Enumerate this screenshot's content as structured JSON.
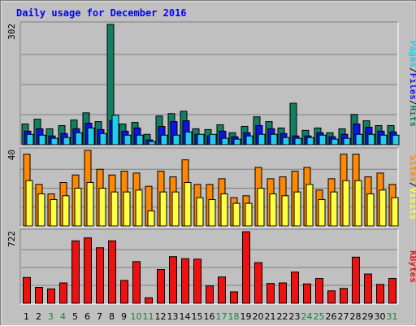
{
  "title": "Daily usage for December 2016",
  "colors": {
    "hits": "#127e62",
    "files": "#1111ee",
    "pages": "#22ccee",
    "visits": "#ffff44",
    "sites": "#ff8800",
    "kbytes": "#ee1111",
    "day_normal": "#000000",
    "day_weekend": "#1b8040"
  },
  "chart_data": [
    {
      "type": "bar",
      "panel": "hits-files-pages",
      "ymax_label": "302",
      "legend": [
        {
          "label": "Pages",
          "color": "#22ccee"
        },
        {
          "label": "/",
          "color": "#000000"
        },
        {
          "label": "Files",
          "color": "#1111ee"
        },
        {
          "label": "/",
          "color": "#000000"
        },
        {
          "label": "Hits",
          "color": "#127e62"
        }
      ],
      "categories": [
        "1",
        "2",
        "3",
        "4",
        "5",
        "6",
        "7",
        "8",
        "9",
        "10",
        "11",
        "12",
        "13",
        "14",
        "15",
        "16",
        "17",
        "18",
        "19",
        "20",
        "21",
        "22",
        "23",
        "24",
        "25",
        "26",
        "27",
        "28",
        "29",
        "30",
        "31"
      ],
      "weekend": [
        false,
        false,
        true,
        true,
        false,
        false,
        false,
        false,
        false,
        true,
        true,
        false,
        false,
        false,
        false,
        false,
        true,
        true,
        false,
        false,
        false,
        false,
        false,
        true,
        true,
        false,
        false,
        false,
        false,
        false,
        true
      ],
      "series": [
        {
          "key": "hits",
          "values": [
            52,
            64,
            40,
            48,
            62,
            80,
            58,
            302,
            52,
            56,
            26,
            72,
            78,
            84,
            40,
            38,
            50,
            30,
            46,
            70,
            58,
            42,
            104,
            36,
            42,
            30,
            40,
            76,
            60,
            48,
            48
          ]
        },
        {
          "key": "files",
          "values": [
            34,
            40,
            22,
            28,
            40,
            54,
            38,
            60,
            34,
            42,
            12,
            46,
            58,
            60,
            26,
            22,
            34,
            20,
            30,
            48,
            40,
            28,
            22,
            22,
            30,
            20,
            26,
            52,
            44,
            34,
            32
          ]
        },
        {
          "key": "pages",
          "values": [
            26,
            24,
            16,
            18,
            30,
            42,
            28,
            74,
            24,
            24,
            8,
            24,
            24,
            32,
            26,
            26,
            16,
            14,
            22,
            26,
            26,
            18,
            16,
            18,
            24,
            14,
            16,
            26,
            26,
            24,
            24
          ]
        }
      ]
    },
    {
      "type": "bar",
      "panel": "visits-sites",
      "ymax_label": "40",
      "legend": [
        {
          "label": "Sites",
          "color": "#ff8800"
        },
        {
          "label": "/",
          "color": "#000000"
        },
        {
          "label": "Visits",
          "color": "#ffff44"
        }
      ],
      "categories": [
        "1",
        "2",
        "3",
        "4",
        "5",
        "6",
        "7",
        "8",
        "9",
        "10",
        "11",
        "12",
        "13",
        "14",
        "15",
        "16",
        "17",
        "18",
        "19",
        "20",
        "21",
        "22",
        "23",
        "24",
        "25",
        "26",
        "27",
        "28",
        "29",
        "30",
        "31"
      ],
      "series": [
        {
          "key": "sites",
          "values": [
            38,
            22,
            17,
            23,
            27,
            40,
            30,
            27,
            29,
            28,
            21,
            29,
            26,
            35,
            22,
            22,
            25,
            15,
            16,
            31,
            25,
            26,
            29,
            31,
            19,
            25,
            38,
            38,
            26,
            28,
            22
          ]
        },
        {
          "key": "visits",
          "values": [
            24,
            17,
            14,
            16,
            20,
            23,
            20,
            18,
            18,
            19,
            8,
            18,
            18,
            23,
            15,
            14,
            17,
            12,
            12,
            20,
            17,
            16,
            18,
            22,
            14,
            18,
            24,
            24,
            17,
            19,
            15
          ]
        }
      ]
    },
    {
      "type": "bar",
      "panel": "kbytes",
      "ymax_label": "722",
      "legend": [
        {
          "label": "KBytes",
          "color": "#ee1111"
        }
      ],
      "categories": [
        "1",
        "2",
        "3",
        "4",
        "5",
        "6",
        "7",
        "8",
        "9",
        "10",
        "11",
        "12",
        "13",
        "14",
        "15",
        "16",
        "17",
        "18",
        "19",
        "20",
        "21",
        "22",
        "23",
        "24",
        "25",
        "26",
        "27",
        "28",
        "29",
        "30",
        "31"
      ],
      "series": [
        {
          "key": "kbytes",
          "values": [
            260,
            160,
            145,
            205,
            630,
            660,
            560,
            630,
            230,
            420,
            55,
            340,
            470,
            450,
            445,
            175,
            265,
            115,
            722,
            410,
            200,
            205,
            315,
            195,
            250,
            125,
            150,
            465,
            295,
            190,
            250
          ]
        }
      ]
    }
  ]
}
